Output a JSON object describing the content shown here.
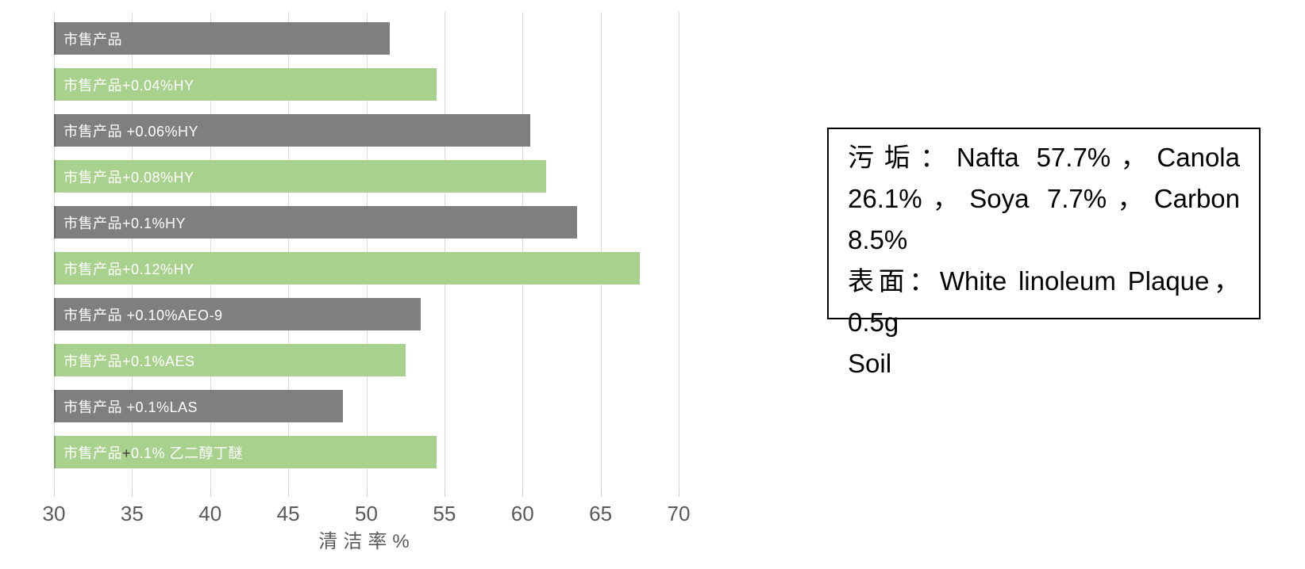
{
  "chart_data": {
    "type": "bar",
    "orientation": "horizontal",
    "title": "",
    "xlabel": "清洁率%",
    "ylabel": "",
    "xlim": [
      30,
      70
    ],
    "xticks": [
      30,
      35,
      40,
      45,
      50,
      55,
      60,
      65,
      70
    ],
    "grid": true,
    "legend": false,
    "bars": [
      {
        "label": "市售产品",
        "value": 51.5,
        "color": "#7F7F7F"
      },
      {
        "label": "市售产品+0.04%HY",
        "value": 54.5,
        "color": "#A9D18E"
      },
      {
        "label": "市售产品 +0.06%HY",
        "value": 60.5,
        "color": "#7F7F7F"
      },
      {
        "label": "市售产品+0.08%HY",
        "value": 61.5,
        "color": "#A9D18E"
      },
      {
        "label": "市售产品+0.1%HY",
        "value": 63.5,
        "color": "#7F7F7F"
      },
      {
        "label": "市售产品+0.12%HY",
        "value": 67.5,
        "color": "#A9D18E"
      },
      {
        "label": "市售产品 +0.10%AEO-9",
        "value": 53.5,
        "color": "#7F7F7F"
      },
      {
        "label": "市售产品+0.1%AES",
        "value": 52.5,
        "color": "#A9D18E"
      },
      {
        "label": "市售产品 +0.1%LAS",
        "value": 48.5,
        "color": "#7F7F7F"
      },
      {
        "label": "市售产品+0.1% 乙二醇丁醚",
        "value": 54.5,
        "color": "#A9D18E",
        "plus_dark": true
      }
    ]
  },
  "textbox": {
    "lines": [
      "污垢：Nafta 57.7%，Canola",
      "26.1%，Soya 7.7%，Carbon 8.5%",
      "表面：White linoleum Plaque，0.5g",
      "Soil"
    ]
  },
  "colors": {
    "bar_gray": "#7F7F7F",
    "bar_green": "#A9D18E",
    "gridline": "#D9D9D9",
    "axis_text": "#595959",
    "bar_label_text": "#FFFFFF",
    "plus_dark": "#3A3A3A",
    "textbox_border": "#000000",
    "background": "#FFFFFF"
  }
}
